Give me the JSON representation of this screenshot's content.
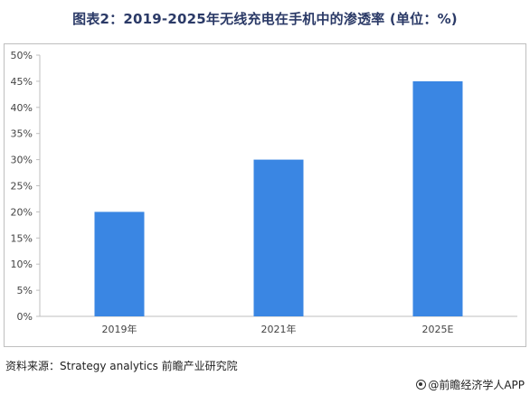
{
  "title": "图表2：2019-2025年无线充电在手机中的渗透率 (单位：%)",
  "source": "资料来源：Strategy analytics 前瞻产业研究院",
  "footer": "@前瞻经济学人APP",
  "colors": {
    "bar": "#3a86e3",
    "axis": "#bfbfbf",
    "text": "#444444"
  },
  "chart_data": {
    "type": "bar",
    "categories": [
      "2019年",
      "2021年",
      "2025E"
    ],
    "values": [
      20,
      30,
      45
    ],
    "ylim": [
      0,
      50
    ],
    "yticks": [
      "0%",
      "5%",
      "10%",
      "15%",
      "20%",
      "25%",
      "30%",
      "35%",
      "40%",
      "45%",
      "50%"
    ],
    "xlabel": "",
    "ylabel": "",
    "grid": false,
    "legend": "none"
  }
}
